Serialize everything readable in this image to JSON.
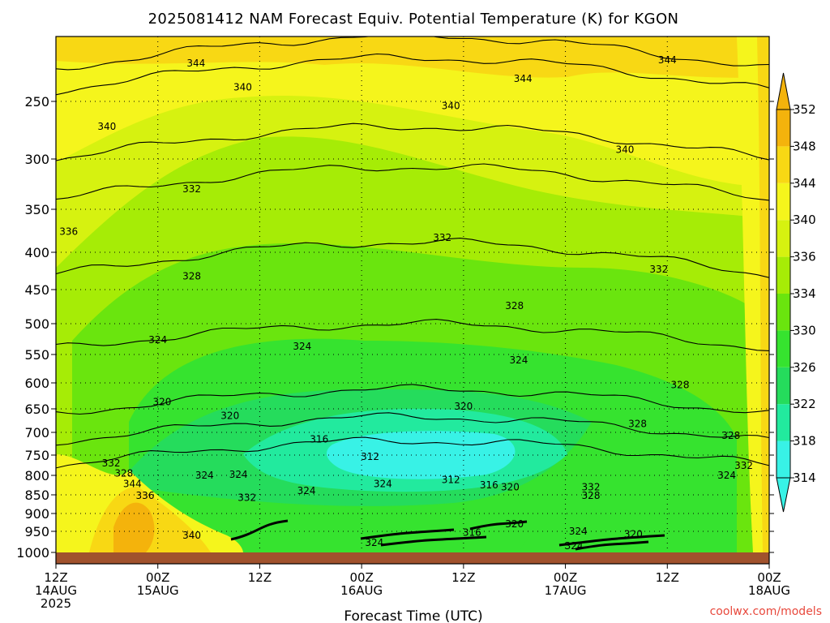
{
  "chart_data": {
    "type": "heatmap",
    "title": "2025081412 NAM Forecast Equiv. Potential Temperature (K) for KGON",
    "xlabel": "Forecast Time (UTC)",
    "ylabel": "",
    "credit": "coolwx.com/models",
    "x_ticks": [
      {
        "hour": 0,
        "l1": "12Z",
        "l2": "14AUG",
        "l3": "2025"
      },
      {
        "hour": 12,
        "l1": "00Z",
        "l2": "15AUG",
        "l3": ""
      },
      {
        "hour": 24,
        "l1": "12Z",
        "l2": "",
        "l3": ""
      },
      {
        "hour": 36,
        "l1": "00Z",
        "l2": "16AUG",
        "l3": ""
      },
      {
        "hour": 48,
        "l1": "12Z",
        "l2": "",
        "l3": ""
      },
      {
        "hour": 60,
        "l1": "00Z",
        "l2": "17AUG",
        "l3": ""
      },
      {
        "hour": 72,
        "l1": "12Z",
        "l2": "",
        "l3": ""
      },
      {
        "hour": 84,
        "l1": "00Z",
        "l2": "18AUG",
        "l3": ""
      }
    ],
    "xlim": [
      0,
      84
    ],
    "ylim_hpa": [
      1000,
      200
    ],
    "y_ticks": [
      250,
      300,
      350,
      400,
      450,
      500,
      550,
      600,
      650,
      700,
      750,
      800,
      850,
      900,
      950,
      1000
    ],
    "colorbar": {
      "labels": [
        314,
        318,
        322,
        326,
        330,
        334,
        336,
        340,
        344,
        348,
        352
      ],
      "colors": [
        "#38f2e6",
        "#22ea9e",
        "#25dc5c",
        "#36e32f",
        "#6ae50e",
        "#a6ec06",
        "#d6f210",
        "#f5f51c",
        "#f8d814",
        "#f4b30c"
      ]
    },
    "contour_levels": [
      {
        "p": 220,
        "theta": 344
      },
      {
        "p": 240,
        "theta": 340
      },
      {
        "p": 300,
        "theta": 336
      },
      {
        "p": 340,
        "theta": 332
      },
      {
        "p": 430,
        "theta": 328
      },
      {
        "p": 540,
        "theta": 324
      },
      {
        "p": 660,
        "theta": 320
      },
      {
        "p": 720,
        "theta": 316
      },
      {
        "p": 775,
        "theta": 312
      }
    ],
    "contour_labels": [
      {
        "hour": 16.5,
        "p": 215,
        "text": "344"
      },
      {
        "hour": 22,
        "p": 237,
        "text": "340"
      },
      {
        "hour": 6,
        "p": 272,
        "text": "340"
      },
      {
        "hour": 46.5,
        "p": 254,
        "text": "340"
      },
      {
        "hour": 55,
        "p": 229,
        "text": "344"
      },
      {
        "hour": 72,
        "p": 212,
        "text": "344"
      },
      {
        "hour": 67,
        "p": 292,
        "text": "340"
      },
      {
        "hour": 1.5,
        "p": 376,
        "text": "336"
      },
      {
        "hour": 16,
        "p": 330,
        "text": "332"
      },
      {
        "hour": 45.5,
        "p": 383,
        "text": "332"
      },
      {
        "hour": 71,
        "p": 423,
        "text": "332"
      },
      {
        "hour": 16,
        "p": 432,
        "text": "328"
      },
      {
        "hour": 54,
        "p": 474,
        "text": "328"
      },
      {
        "hour": 73.5,
        "p": 604,
        "text": "328"
      },
      {
        "hour": 12,
        "p": 526,
        "text": "324"
      },
      {
        "hour": 29,
        "p": 537,
        "text": "324"
      },
      {
        "hour": 54.5,
        "p": 560,
        "text": "324"
      },
      {
        "hour": 12.5,
        "p": 637,
        "text": "320"
      },
      {
        "hour": 20.5,
        "p": 665,
        "text": "320"
      },
      {
        "hour": 48,
        "p": 645,
        "text": "320"
      },
      {
        "hour": 31,
        "p": 715,
        "text": "316"
      },
      {
        "hour": 37,
        "p": 754,
        "text": "312"
      },
      {
        "hour": 46.5,
        "p": 811,
        "text": "312"
      },
      {
        "hour": 51,
        "p": 825,
        "text": "316"
      },
      {
        "hour": 53.5,
        "p": 830,
        "text": "320"
      },
      {
        "hour": 38.5,
        "p": 822,
        "text": "324"
      },
      {
        "hour": 6.5,
        "p": 770,
        "text": "332"
      },
      {
        "hour": 8,
        "p": 795,
        "text": "328"
      },
      {
        "hour": 9,
        "p": 822,
        "text": "344"
      },
      {
        "hour": 10.5,
        "p": 852,
        "text": "336"
      },
      {
        "hour": 17.5,
        "p": 800,
        "text": "324"
      },
      {
        "hour": 21.5,
        "p": 798,
        "text": "324"
      },
      {
        "hour": 22.5,
        "p": 858,
        "text": "332"
      },
      {
        "hour": 29.5,
        "p": 840,
        "text": "324"
      },
      {
        "hour": 16,
        "p": 960,
        "text": "340"
      },
      {
        "hour": 37.5,
        "p": 977,
        "text": "324"
      },
      {
        "hour": 54,
        "p": 930,
        "text": "320"
      },
      {
        "hour": 49,
        "p": 953,
        "text": "316"
      },
      {
        "hour": 61.5,
        "p": 950,
        "text": "324"
      },
      {
        "hour": 61,
        "p": 985,
        "text": "324"
      },
      {
        "hour": 68,
        "p": 957,
        "text": "320"
      },
      {
        "hour": 63,
        "p": 830,
        "text": "332"
      },
      {
        "hour": 63,
        "p": 852,
        "text": "328"
      },
      {
        "hour": 68.5,
        "p": 682,
        "text": "328"
      },
      {
        "hour": 79.5,
        "p": 707,
        "text": "328"
      },
      {
        "hour": 79,
        "p": 800,
        "text": "324"
      },
      {
        "hour": 81,
        "p": 776,
        "text": "332"
      }
    ]
  }
}
